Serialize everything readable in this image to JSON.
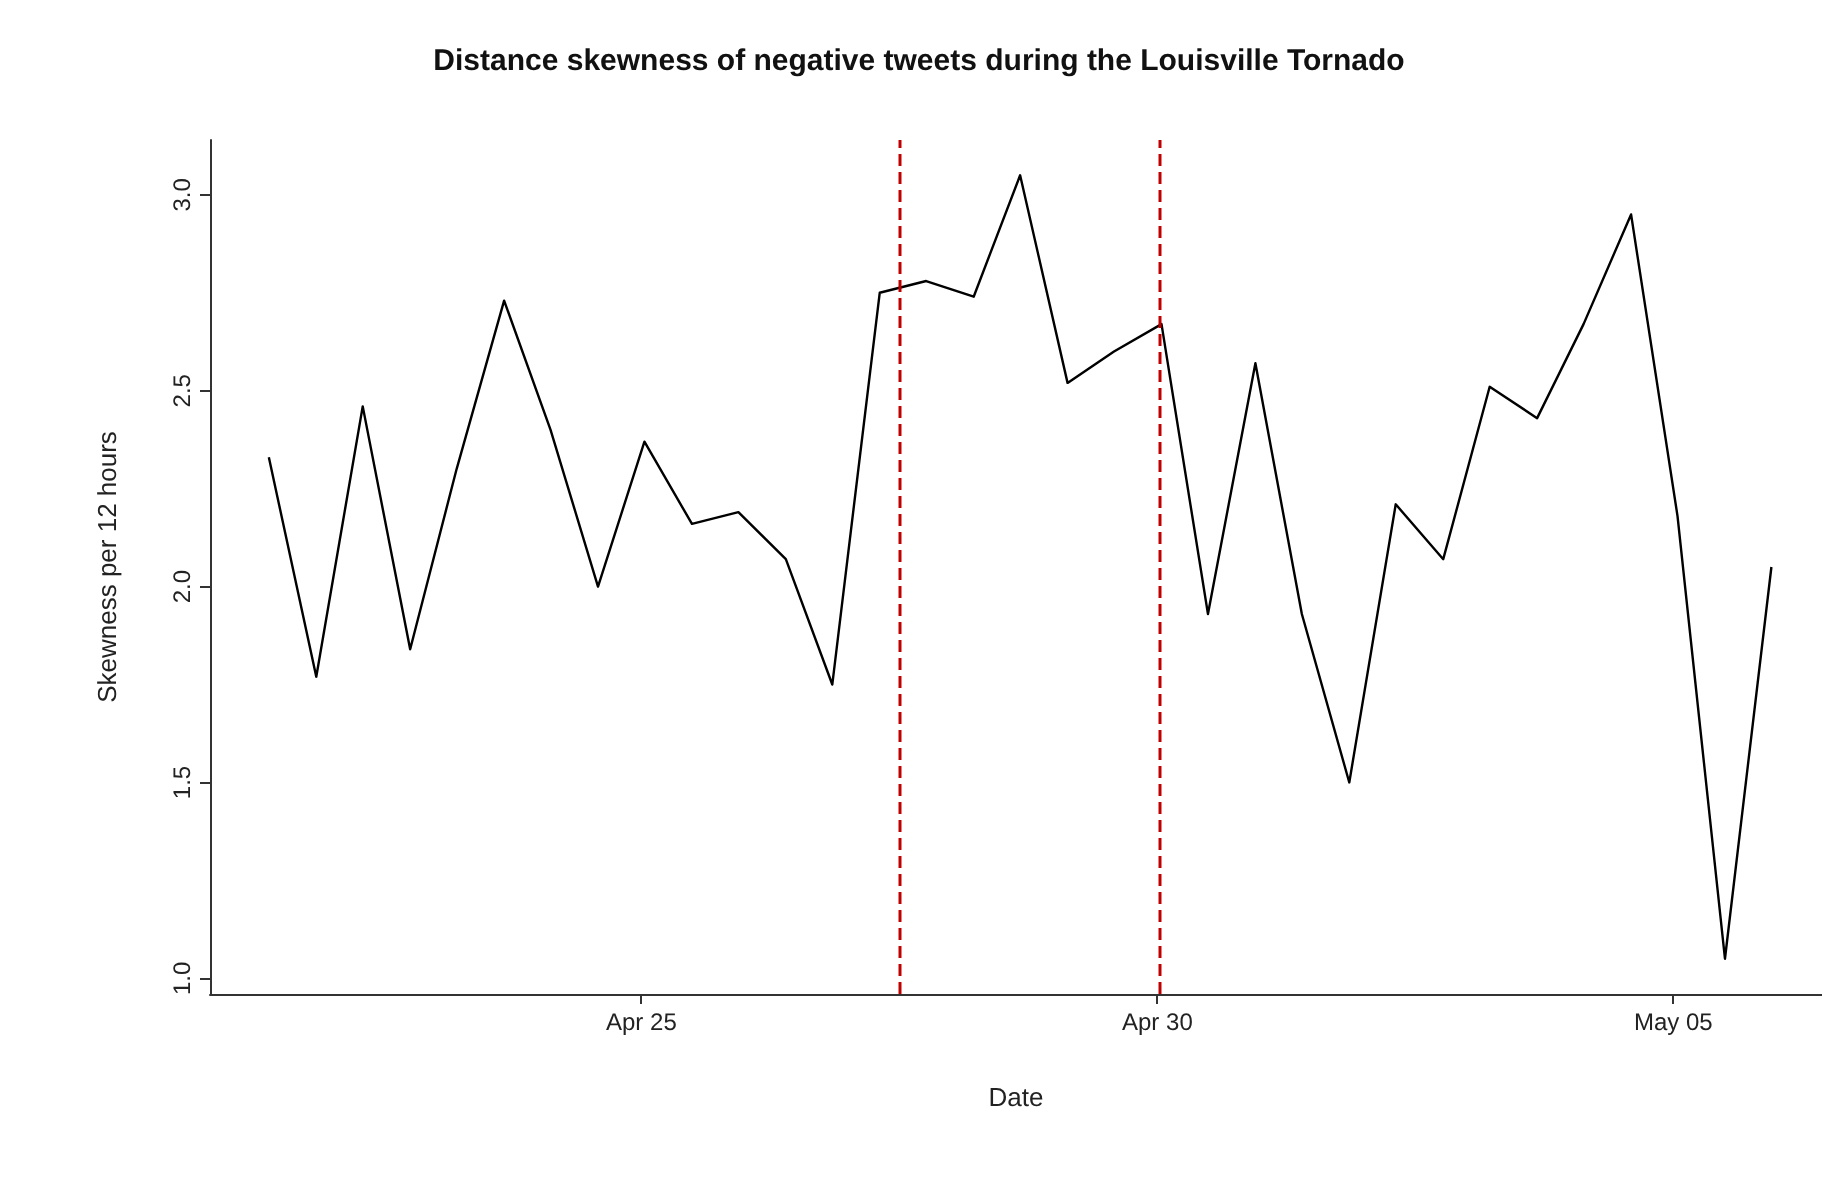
{
  "chart_data": {
    "type": "line",
    "title": "Distance skewness of negative tweets during the Louisville Tornado",
    "xlabel": "Date",
    "ylabel": "Skewness per 12 hours",
    "x": [
      "--04-21T09:22",
      "--04-21T20:24",
      "--04-22T07:12",
      "--04-22T18:14",
      "--04-23T05:02",
      "--04-23T16:05",
      "--04-24T02:53",
      "--04-24T13:55",
      "--04-25T00:43",
      "--04-25T11:46",
      "--04-25T22:34",
      "--04-26T09:36",
      "--04-26T20:24",
      "--04-27T07:26",
      "--04-27T18:14",
      "--04-28T05:17",
      "--04-28T16:05",
      "--04-29T03:07",
      "--04-29T13:55",
      "--04-30T00:58",
      "--04-30T11:46",
      "--04-30T22:48",
      "--05-01T09:36",
      "--05-01T20:38",
      "--05-02T07:26",
      "--05-02T18:29",
      "--05-03T05:17",
      "--05-03T16:19",
      "--05-04T03:07",
      "--05-04T14:10",
      "--05-05T00:58",
      "--05-05T12:00",
      "--05-05T22:48"
    ],
    "series": [
      {
        "color": "#000000",
        "values": [
          2.33,
          1.77,
          2.46,
          1.84,
          2.3,
          2.73,
          2.4,
          2.0,
          2.37,
          2.16,
          2.19,
          2.07,
          1.75,
          2.75,
          2.78,
          2.74,
          3.05,
          2.52,
          2.6,
          2.67,
          1.93,
          2.57,
          1.93,
          1.5,
          2.21,
          2.07,
          2.51,
          2.43,
          2.67,
          2.95,
          2.18,
          1.05,
          2.05
        ]
      }
    ],
    "xlim": [
      "--04-20T19:41",
      "--05-06T10:34"
    ],
    "xticks": [
      {
        "value": "--04-25",
        "label": "Apr 25"
      },
      {
        "value": "--04-30",
        "label": "Apr 30"
      },
      {
        "value": "--05-05",
        "label": "May 05"
      }
    ],
    "ylim": [
      0.96,
      3.14
    ],
    "yticks": [
      {
        "value": 1,
        "label": "1.0"
      },
      {
        "value": 1.5,
        "label": "1.5"
      },
      {
        "value": 2,
        "label": "2.0"
      },
      {
        "value": 2.5,
        "label": "2.5"
      },
      {
        "value": 3,
        "label": "3.0"
      }
    ],
    "ref_lines": [
      {
        "axis": "x",
        "value": "--04-27T12:14",
        "color": "#c00000",
        "line_style": "dashed"
      },
      {
        "axis": "x",
        "value": "--04-30T00:29",
        "color": "#c00000",
        "line_style": "dashed"
      }
    ],
    "grid": false,
    "marker": "none",
    "line_style": "solid"
  }
}
